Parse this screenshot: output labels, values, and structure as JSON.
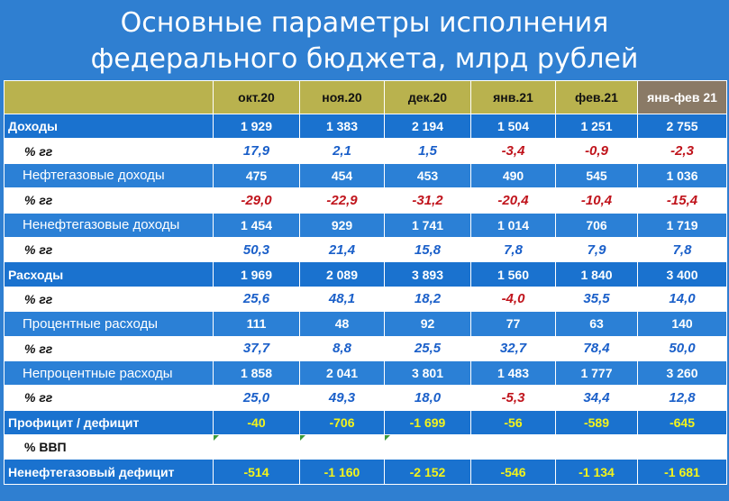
{
  "title": {
    "line1": "Основные параметры исполнения",
    "line2": "федерального бюджета, млрд рублей"
  },
  "columns": [
    "окт.20",
    "ноя.20",
    "дек.20",
    "янв.21",
    "фев.21",
    "янв-фев 21"
  ],
  "rows": [
    {
      "label": "Доходы",
      "kind": "main",
      "values": [
        "1 929",
        "1 383",
        "2 194",
        "1 504",
        "1 251",
        "2 755"
      ]
    },
    {
      "label": "% гг",
      "kind": "pct",
      "values": [
        "17,9",
        "2,1",
        "1,5",
        "-3,4",
        "-0,9",
        "-2,3"
      ]
    },
    {
      "label": "Нефтегазовые доходы",
      "kind": "sub",
      "values": [
        "475",
        "454",
        "453",
        "490",
        "545",
        "1 036"
      ]
    },
    {
      "label": "% гг",
      "kind": "pct",
      "values": [
        "-29,0",
        "-22,9",
        "-31,2",
        "-20,4",
        "-10,4",
        "-15,4"
      ]
    },
    {
      "label": "Ненефтегазовые доходы",
      "kind": "sub",
      "values": [
        "1 454",
        "929",
        "1 741",
        "1 014",
        "706",
        "1 719"
      ]
    },
    {
      "label": "% гг",
      "kind": "pct",
      "values": [
        "50,3",
        "21,4",
        "15,8",
        "7,8",
        "7,9",
        "7,8"
      ]
    },
    {
      "label": "Расходы",
      "kind": "main",
      "values": [
        "1 969",
        "2 089",
        "3 893",
        "1 560",
        "1 840",
        "3 400"
      ]
    },
    {
      "label": "% гг",
      "kind": "pct",
      "values": [
        "25,6",
        "48,1",
        "18,2",
        "-4,0",
        "35,5",
        "14,0"
      ]
    },
    {
      "label": "Процентные расходы",
      "kind": "sub",
      "values": [
        "111",
        "48",
        "92",
        "77",
        "63",
        "140"
      ]
    },
    {
      "label": "% гг",
      "kind": "pct",
      "values": [
        "37,7",
        "8,8",
        "25,5",
        "32,7",
        "78,4",
        "50,0"
      ]
    },
    {
      "label": "Непроцентные расходы",
      "kind": "sub",
      "values": [
        "1 858",
        "2 041",
        "3 801",
        "1 483",
        "1 777",
        "3 260"
      ]
    },
    {
      "label": "% гг",
      "kind": "pct",
      "values": [
        "25,0",
        "49,3",
        "18,0",
        "-5,3",
        "34,4",
        "12,8"
      ]
    },
    {
      "label": "Профицит / дефицит",
      "kind": "main-yellow",
      "values": [
        "-40",
        "-706",
        "-1 699",
        "-56",
        "-589",
        "-645"
      ]
    },
    {
      "label": "% ВВП",
      "kind": "gdp",
      "values": [
        "",
        "",
        "",
        "",
        "",
        ""
      ]
    },
    {
      "label": "Ненефтегазовый дефицит",
      "kind": "main-yellow",
      "values": [
        "-514",
        "-1 160",
        "-2 152",
        "-546",
        "-1 134",
        "-1 681"
      ]
    }
  ],
  "colors": {
    "background": "#2f7fd1",
    "header": "#b9b24e",
    "header_ytd": "#8a7a66",
    "positive_pct": "#1a5fc9",
    "negative_pct": "#c0141c",
    "deficit_text": "#f4f41a"
  }
}
